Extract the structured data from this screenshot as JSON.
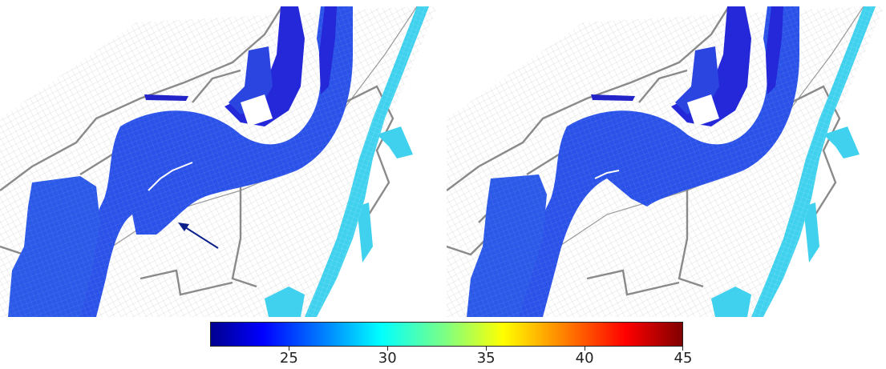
{
  "panels": [
    {
      "id": "left",
      "has_arrow": true
    },
    {
      "id": "right",
      "has_arrow": false
    }
  ],
  "colorbar": {
    "min": 21,
    "max": 45,
    "ticks": [
      "25",
      "30",
      "35",
      "40",
      "45"
    ],
    "tick_values": [
      25,
      30,
      35,
      40,
      45
    ],
    "colormap": "jet"
  },
  "colors": {
    "background": "#ffffff",
    "mesh_line": "#b8b8b8",
    "road_line": "#8a8a8a",
    "river_fill": "#2b52e8",
    "river_dark": "#1f24d6",
    "coast_fill": "#3fd1ee",
    "arrow": "#0b1f8a"
  }
}
